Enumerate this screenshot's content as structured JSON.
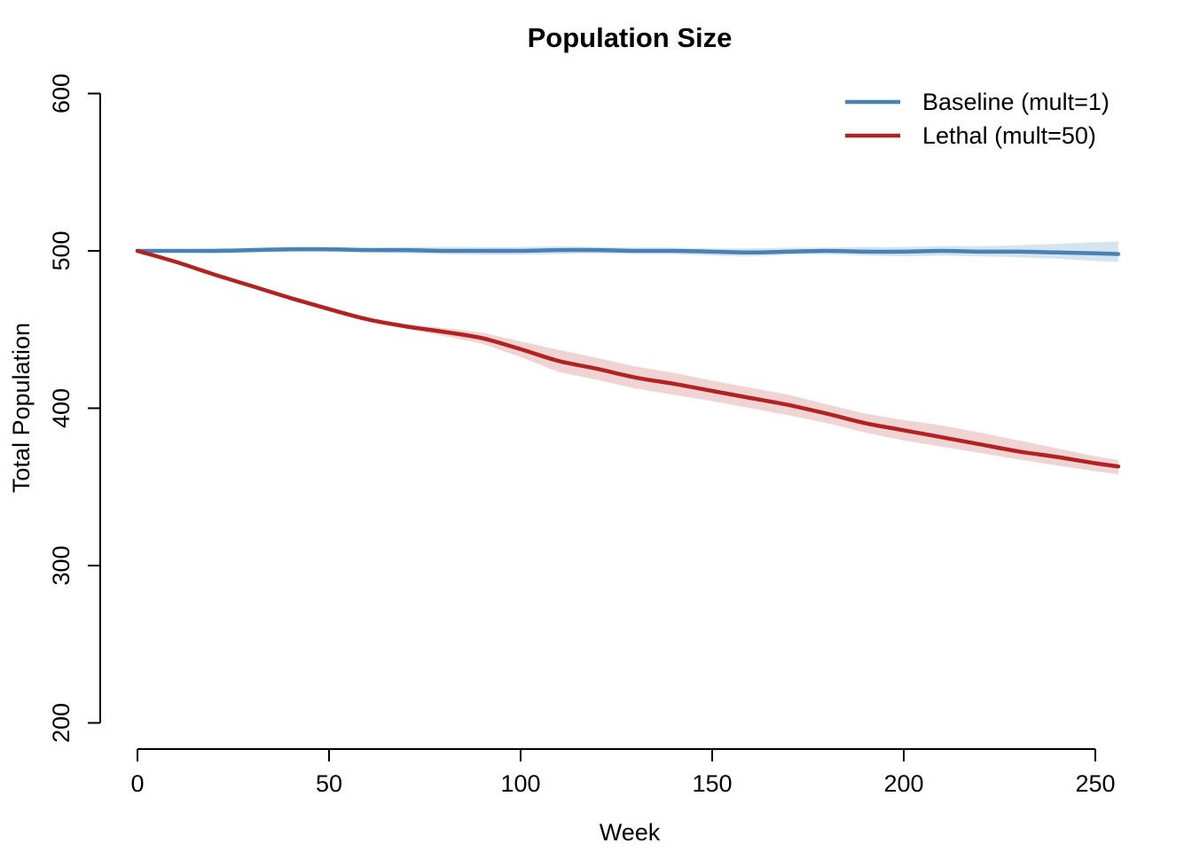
{
  "title": "Population Size",
  "chart_data": {
    "type": "line",
    "title": "Population Size",
    "xlabel": "Week",
    "ylabel": "Total Population",
    "xlim": [
      0,
      256
    ],
    "ylim": [
      200,
      600
    ],
    "x_ticks": [
      0,
      50,
      100,
      150,
      200,
      250
    ],
    "y_ticks": [
      200,
      300,
      400,
      500,
      600
    ],
    "grid": false,
    "legend_position": "top-right",
    "axis_color": "#000000",
    "x": [
      0,
      10,
      20,
      30,
      40,
      50,
      60,
      70,
      80,
      90,
      100,
      110,
      120,
      130,
      140,
      150,
      160,
      170,
      180,
      190,
      200,
      210,
      220,
      230,
      240,
      250,
      256
    ],
    "series": [
      {
        "name": "Baseline (mult=1)",
        "color": "#4682B4",
        "band_opacity": 0.22,
        "values": [
          500,
          500,
          500,
          500.5,
          501,
          501,
          500.5,
          500.5,
          500,
          500,
          500,
          500.5,
          500.5,
          500,
          500,
          499.5,
          499,
          499.5,
          500,
          499.5,
          499.5,
          500,
          499.5,
          499.5,
          499,
          498.5,
          498
        ],
        "band_lower": [
          500,
          499,
          498.5,
          499,
          499.5,
          499.5,
          499,
          498.5,
          498,
          497.5,
          497.5,
          498,
          498.5,
          498,
          498,
          497,
          496.5,
          497.5,
          498,
          497,
          496.5,
          497,
          496.5,
          496,
          495,
          493.5,
          493
        ],
        "band_upper": [
          500,
          501,
          501.5,
          502,
          502.5,
          502.5,
          502,
          502.5,
          502.5,
          502.5,
          502.5,
          503,
          502.5,
          502,
          502,
          501.5,
          501.5,
          502,
          502,
          502.5,
          502.5,
          503,
          503,
          503.5,
          504.5,
          505.5,
          506
        ]
      },
      {
        "name": "Lethal (mult=50)",
        "color": "#B22222",
        "band_opacity": 0.2,
        "values": [
          500,
          493,
          485,
          477.5,
          470,
          463,
          456.5,
          452,
          448.5,
          444.5,
          437.5,
          430,
          425,
          419.5,
          415.5,
          411,
          406.5,
          402,
          396.5,
          390.5,
          386,
          381.5,
          377,
          372.5,
          369,
          365,
          363
        ],
        "band_lower": [
          500,
          493,
          485,
          477,
          469.5,
          462,
          455.5,
          450.5,
          446,
          441,
          432.5,
          423,
          418,
          412.5,
          408.5,
          404.5,
          400,
          395.5,
          390.5,
          384.5,
          379.5,
          375.5,
          371.5,
          367.5,
          363.5,
          360,
          358
        ],
        "band_upper": [
          500,
          493,
          485,
          478,
          470.5,
          464,
          457.5,
          453.5,
          451,
          448,
          442.5,
          437,
          432,
          426.5,
          422.5,
          417.5,
          413,
          408.5,
          402.5,
          396.5,
          392.5,
          389,
          384.5,
          379.5,
          374.5,
          369.5,
          367
        ]
      }
    ]
  }
}
